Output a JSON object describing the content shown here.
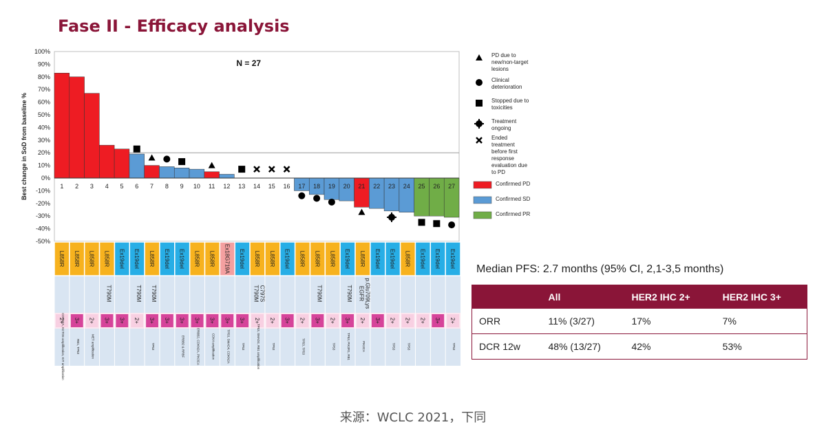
{
  "title": "Fase II - Efficacy analysis",
  "caption": "来源：WCLC 2021，下同",
  "chart_data": {
    "type": "bar",
    "title": "",
    "n_label": "N = 27",
    "ylabel": "Best change in SoD from baseline %",
    "ylim": [
      -50,
      100
    ],
    "yticks": [
      "100%",
      "90%",
      "80%",
      "70%",
      "60%",
      "50%",
      "40%",
      "30%",
      "20%",
      "10%",
      "0%",
      "-10%",
      "-20%",
      "-30%",
      "-40%",
      "-50%"
    ],
    "reference_line": 20,
    "categories": [
      "1",
      "2",
      "3",
      "4",
      "5",
      "6",
      "7",
      "8",
      "9",
      "10",
      "11",
      "12",
      "13",
      "14",
      "15",
      "16",
      "17",
      "18",
      "19",
      "20",
      "21",
      "22",
      "23",
      "24",
      "25",
      "26",
      "27"
    ],
    "values": [
      83,
      80,
      67,
      26,
      23,
      19,
      10,
      9,
      8,
      7,
      5,
      3,
      0,
      0,
      0,
      0,
      -10,
      -13,
      -17,
      -18,
      -23,
      -24,
      -26,
      -27,
      -30,
      -30,
      -31
    ],
    "response": [
      "PD",
      "PD",
      "PD",
      "PD",
      "PD",
      "SD",
      "PD",
      "SD",
      "SD",
      "SD",
      "PD",
      "SD",
      "SD",
      "SD",
      "SD",
      "SD",
      "SD",
      "SD",
      "SD",
      "SD",
      "PD",
      "SD",
      "SD",
      "SD",
      "PR",
      "PR",
      "PR"
    ],
    "colors": {
      "PD": "#ee1c23",
      "SD": "#5b9bd5",
      "PR": "#70ad47"
    },
    "markers": [
      {
        "patient": 6,
        "symbol": "square",
        "value": 23
      },
      {
        "patient": 7,
        "symbol": "triangle",
        "value": 16
      },
      {
        "patient": 8,
        "symbol": "circle",
        "value": 15
      },
      {
        "patient": 9,
        "symbol": "square",
        "value": 13
      },
      {
        "patient": 11,
        "symbol": "triangle",
        "value": 10
      },
      {
        "patient": 13,
        "symbol": "square",
        "value": 7
      },
      {
        "patient": 14,
        "symbol": "cross",
        "value": 7
      },
      {
        "patient": 15,
        "symbol": "cross",
        "value": 7
      },
      {
        "patient": 16,
        "symbol": "cross",
        "value": 7
      },
      {
        "patient": 17,
        "symbol": "circle",
        "value": -14
      },
      {
        "patient": 18,
        "symbol": "circle",
        "value": -16
      },
      {
        "patient": 19,
        "symbol": "circle",
        "value": -19
      },
      {
        "patient": 21,
        "symbol": "triangle",
        "value": -27
      },
      {
        "patient": 23,
        "symbol": "plus-circle",
        "value": -31
      },
      {
        "patient": 25,
        "symbol": "square",
        "value": -35
      },
      {
        "patient": 26,
        "symbol": "square",
        "value": -36
      },
      {
        "patient": 27,
        "symbol": "circle",
        "value": -37
      }
    ],
    "legend": [
      {
        "symbol": "triangle",
        "text": "PD due to new/non-target lesions"
      },
      {
        "symbol": "circle",
        "text": "Clinical deterioration"
      },
      {
        "symbol": "square",
        "text": "Stopped due to toxicities"
      },
      {
        "symbol": "plus-circle",
        "text": "Treatment ongoing"
      },
      {
        "symbol": "cross",
        "text": "Ended treatment before first response evaluation due to PD"
      },
      {
        "swatch": "#ee1c23",
        "text": "Confirmed PD"
      },
      {
        "swatch": "#5b9bd5",
        "text": "Confirmed SD"
      },
      {
        "swatch": "#70ad47",
        "text": "Confirmed PR"
      }
    ],
    "legend_placement": "right",
    "mutation": [
      "L858R",
      "L858R",
      "L858R",
      "L858R",
      "Ex19del",
      "Ex19del",
      "L858R",
      "Ex19del",
      "Ex19del",
      "L858R",
      "L858R",
      "Ex18G719A",
      "Ex19del",
      "L858R",
      "L858R",
      "Ex19del",
      "L858R",
      "L858R",
      "L858R",
      "Ex19del",
      "L858R",
      "Ex19del",
      "Ex19del",
      "L858R",
      "Ex19del",
      "Ex19del",
      "Ex19del"
    ],
    "mutation_colors": {
      "L858R": "#f7b21e",
      "Ex19del": "#27aee6",
      "Ex18G719A": "#f4a0a0"
    },
    "resistance": [
      "",
      "",
      "",
      "T790M",
      "",
      "T790M",
      "T790M",
      "",
      "",
      "",
      "",
      "",
      "",
      "T790M C797S",
      "",
      "",
      "",
      "T790M",
      "",
      "T790M",
      "EGFR p.Glu709Lys",
      "",
      "",
      "",
      "",
      "",
      ""
    ],
    "her2": [
      "2+",
      "3+",
      "2+",
      "3+",
      "3+",
      "2+",
      "3+",
      "3+",
      "3+",
      "3+",
      "3+",
      "3+",
      "3+",
      "2+",
      "2+",
      "3+",
      "2+",
      "3+",
      "2+",
      "3+",
      "2+",
      "3+",
      "2+",
      "2+",
      "2+",
      "3+",
      "2+"
    ],
    "her2_colors": {
      "2+": "#f8d0e2",
      "3+": "#d6449a"
    },
    "co_alterations": [
      "CDKN2A, KCTD6 amplification, KIT amplification",
      "RB1, TP53",
      "MET amplification",
      "",
      "",
      "",
      "TP53",
      "",
      "ERBB2 & RRBF",
      "ERBB2, CDKN2A, PIK3CA",
      "CDK4 amplification",
      "TP53, SMAD4, CDKN2A",
      "TP53",
      "TP53, SMAD4, RB1 amplification",
      "TP53",
      "",
      "TP53, TP53",
      "",
      "TP53",
      "TP53, PIK3R1, RB1",
      "PIK3CA",
      "",
      "TP53",
      "TP53",
      "",
      "",
      "TP53"
    ]
  },
  "pfs_text": "Median PFS: 2.7 months (95% CI, 2,1-3,5 months)",
  "table": {
    "headers": [
      "",
      "All",
      "HER2 IHC 2+",
      "HER2 IHC 3+"
    ],
    "rows": [
      [
        "ORR",
        "11% (3/27)",
        "17%",
        "7%"
      ],
      [
        "DCR 12w",
        "48% (13/27)",
        "42%",
        "53%"
      ]
    ]
  }
}
